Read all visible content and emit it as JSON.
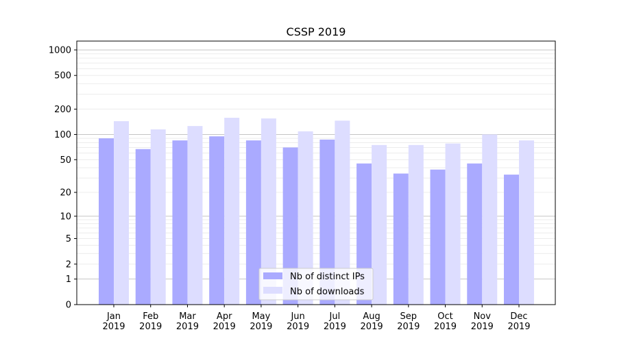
{
  "chart_data": {
    "type": "bar",
    "title": "CSSP 2019",
    "xlabel": "",
    "ylabel": "",
    "yscale": "log10(y+1)",
    "ylim": [
      0,
      1272
    ],
    "yticks": [
      0,
      1,
      2,
      5,
      10,
      20,
      50,
      100,
      200,
      500,
      1000
    ],
    "grid": true,
    "legend_position": "lower center",
    "categories": [
      "Jan\n2019",
      "Feb\n2019",
      "Mar\n2019",
      "Apr\n2019",
      "May\n2019",
      "Jun\n2019",
      "Jul\n2019",
      "Aug\n2019",
      "Sep\n2019",
      "Oct\n2019",
      "Nov\n2019",
      "Dec\n2019"
    ],
    "series": [
      {
        "name": "Nb of distinct IPs",
        "color": "#aaaaff",
        "values": [
          90,
          67,
          85,
          95,
          85,
          70,
          87,
          45,
          34,
          38,
          45,
          33
        ]
      },
      {
        "name": "Nb of downloads",
        "color": "#ddddff",
        "values": [
          144,
          115,
          126,
          158,
          155,
          109,
          146,
          75,
          75,
          78,
          100,
          85
        ]
      }
    ]
  }
}
